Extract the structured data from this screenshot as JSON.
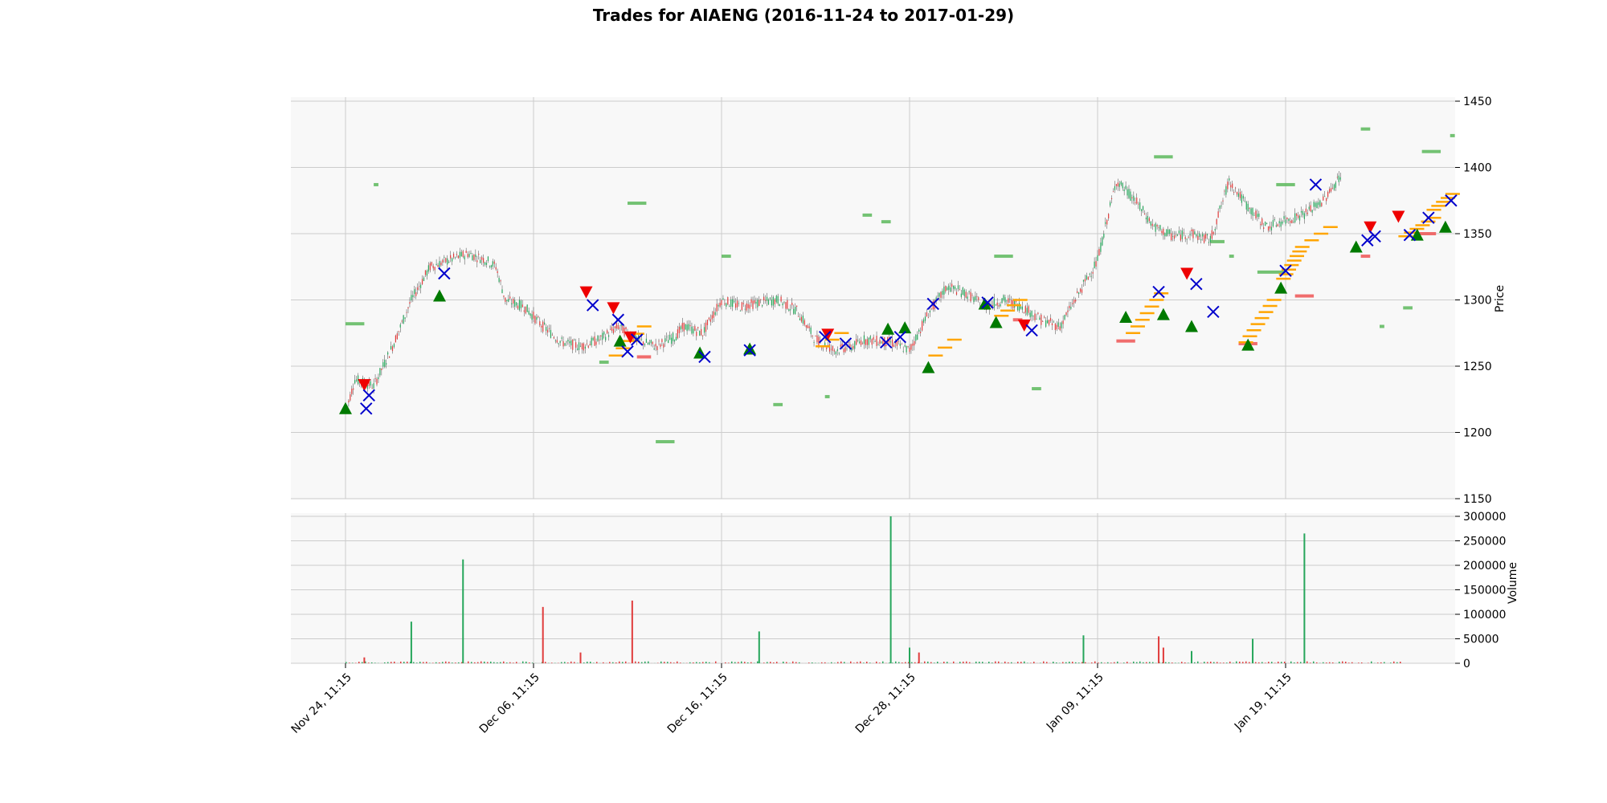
{
  "chart_data": {
    "type": "candlestick",
    "title": "Trades for AIAENG (2016-11-24 to 2017-01-29)",
    "y_label": "Price",
    "volume_label": "Volume",
    "price_ylim": [
      1150,
      1450
    ],
    "price_ticks": [
      "1150",
      "1200",
      "1250",
      "1300",
      "1350",
      "1400",
      "1450"
    ],
    "volume_ylim": [
      0,
      300000
    ],
    "volume_ticks": [
      "0",
      "50000",
      "100000",
      "150000",
      "200000",
      "250000",
      "300000"
    ],
    "x_ticks": [
      "Nov 24, 11:15",
      "Dec 06, 11:15",
      "Dec 16, 11:15",
      "Dec 28, 11:15",
      "Jan 09, 11:15",
      "Jan 19, 11:15"
    ],
    "grid": true,
    "colors": {
      "up": "#26a65b",
      "down": "#e03c3c",
      "buy_marker": "#007a00",
      "sell_marker": "#ee0000",
      "exit_marker": "#0000cc",
      "entry_level": "#ffa500",
      "profit_zone": "#5cb85c",
      "loss_zone": "#ee5555",
      "panel_bg": "#f8f8f8",
      "grid": "#cccccc"
    },
    "price_path": [
      [
        0.0,
        1215
      ],
      [
        0.01,
        1240
      ],
      [
        0.03,
        1235
      ],
      [
        0.05,
        1265
      ],
      [
        0.07,
        1300
      ],
      [
        0.09,
        1325
      ],
      [
        0.11,
        1330
      ],
      [
        0.13,
        1335
      ],
      [
        0.15,
        1330
      ],
      [
        0.16,
        1325
      ],
      [
        0.17,
        1300
      ],
      [
        0.19,
        1295
      ],
      [
        0.21,
        1280
      ],
      [
        0.23,
        1268
      ],
      [
        0.25,
        1265
      ],
      [
        0.27,
        1270
      ],
      [
        0.29,
        1280
      ],
      [
        0.31,
        1270
      ],
      [
        0.33,
        1265
      ],
      [
        0.35,
        1272
      ],
      [
        0.36,
        1280
      ],
      [
        0.38,
        1275
      ],
      [
        0.4,
        1300
      ],
      [
        0.42,
        1295
      ],
      [
        0.44,
        1298
      ],
      [
        0.46,
        1300
      ],
      [
        0.48,
        1292
      ],
      [
        0.5,
        1270
      ],
      [
        0.52,
        1262
      ],
      [
        0.54,
        1265
      ],
      [
        0.55,
        1270
      ],
      [
        0.58,
        1268
      ],
      [
        0.6,
        1262
      ],
      [
        0.62,
        1290
      ],
      [
        0.64,
        1310
      ],
      [
        0.66,
        1305
      ],
      [
        0.68,
        1295
      ],
      [
        0.7,
        1300
      ],
      [
        0.72,
        1295
      ],
      [
        0.74,
        1285
      ],
      [
        0.76,
        1280
      ],
      [
        0.78,
        1305
      ],
      [
        0.8,
        1330
      ],
      [
        0.82,
        1390
      ],
      [
        0.84,
        1375
      ],
      [
        0.86,
        1355
      ],
      [
        0.88,
        1348
      ],
      [
        0.9,
        1350
      ],
      [
        0.92,
        1345
      ],
      [
        0.94,
        1390
      ],
      [
        0.96,
        1370
      ],
      [
        0.98,
        1355
      ],
      [
        1.0,
        1360
      ],
      [
        1.02,
        1365
      ],
      [
        1.04,
        1375
      ],
      [
        1.06,
        1395
      ]
    ],
    "volume_spikes": [
      [
        0.02,
        12000,
        "down"
      ],
      [
        0.07,
        85000,
        "up"
      ],
      [
        0.125,
        212000,
        "up"
      ],
      [
        0.21,
        115000,
        "down"
      ],
      [
        0.25,
        22000,
        "down"
      ],
      [
        0.305,
        128000,
        "down"
      ],
      [
        0.44,
        65000,
        "up"
      ],
      [
        0.58,
        300000,
        "up"
      ],
      [
        0.6,
        32000,
        "up"
      ],
      [
        0.61,
        22000,
        "down"
      ],
      [
        0.785,
        57000,
        "up"
      ],
      [
        0.865,
        55000,
        "down"
      ],
      [
        0.87,
        32000,
        "down"
      ],
      [
        0.9,
        25000,
        "up"
      ],
      [
        0.965,
        50000,
        "up"
      ],
      [
        1.02,
        265000,
        "up"
      ]
    ],
    "buy_markers": [
      [
        0.0,
        1218
      ],
      [
        0.1,
        1303
      ],
      [
        0.292,
        1269
      ],
      [
        0.377,
        1260
      ],
      [
        0.43,
        1263
      ],
      [
        0.577,
        1278
      ],
      [
        0.595,
        1279
      ],
      [
        0.62,
        1249
      ],
      [
        0.68,
        1297
      ],
      [
        0.692,
        1283
      ],
      [
        0.83,
        1287
      ],
      [
        0.87,
        1289
      ],
      [
        0.9,
        1280
      ],
      [
        0.96,
        1266
      ],
      [
        0.995,
        1309
      ],
      [
        1.075,
        1340
      ],
      [
        1.14,
        1349
      ],
      [
        1.17,
        1355
      ]
    ],
    "sell_markers": [
      [
        0.02,
        1236
      ],
      [
        0.256,
        1306
      ],
      [
        0.285,
        1294
      ],
      [
        0.303,
        1272
      ],
      [
        0.513,
        1274
      ],
      [
        0.722,
        1281
      ],
      [
        0.895,
        1320
      ],
      [
        1.09,
        1355
      ],
      [
        1.12,
        1363
      ]
    ],
    "exit_markers": [
      [
        0.022,
        1218
      ],
      [
        0.025,
        1228
      ],
      [
        0.105,
        1320
      ],
      [
        0.263,
        1296
      ],
      [
        0.29,
        1285
      ],
      [
        0.3,
        1261
      ],
      [
        0.31,
        1270
      ],
      [
        0.382,
        1257
      ],
      [
        0.43,
        1262
      ],
      [
        0.51,
        1272
      ],
      [
        0.532,
        1267
      ],
      [
        0.575,
        1268
      ],
      [
        0.59,
        1272
      ],
      [
        0.625,
        1297
      ],
      [
        0.683,
        1298
      ],
      [
        0.73,
        1277
      ],
      [
        0.865,
        1306
      ],
      [
        0.905,
        1312
      ],
      [
        0.923,
        1291
      ],
      [
        1.0,
        1322
      ],
      [
        1.032,
        1387
      ],
      [
        1.087,
        1345
      ],
      [
        1.095,
        1348
      ],
      [
        1.132,
        1349
      ],
      [
        1.152,
        1362
      ],
      [
        1.176,
        1375
      ]
    ],
    "profit_zones": [
      [
        0.0,
        0.02,
        1282
      ],
      [
        0.03,
        0.035,
        1387
      ],
      [
        0.27,
        0.28,
        1253
      ],
      [
        0.3,
        0.32,
        1373
      ],
      [
        0.33,
        0.35,
        1193
      ],
      [
        0.4,
        0.41,
        1333
      ],
      [
        0.55,
        0.56,
        1364
      ],
      [
        0.57,
        0.58,
        1359
      ],
      [
        0.69,
        0.71,
        1333
      ],
      [
        0.73,
        0.74,
        1233
      ],
      [
        0.86,
        0.88,
        1408
      ],
      [
        0.92,
        0.935,
        1344
      ],
      [
        0.94,
        0.945,
        1333
      ],
      [
        0.97,
        1.0,
        1321
      ],
      [
        0.99,
        1.01,
        1387
      ],
      [
        1.08,
        1.09,
        1429
      ],
      [
        1.1,
        1.105,
        1280
      ],
      [
        1.125,
        1.135,
        1294
      ],
      [
        1.145,
        1.165,
        1412
      ],
      [
        1.175,
        1.18,
        1424
      ],
      [
        0.455,
        0.465,
        1221
      ],
      [
        0.51,
        0.515,
        1227
      ]
    ],
    "loss_zones": [
      [
        0.82,
        0.84,
        1269
      ],
      [
        0.95,
        0.97,
        1267
      ],
      [
        1.01,
        1.03,
        1303
      ],
      [
        1.08,
        1.09,
        1333
      ],
      [
        1.142,
        1.16,
        1350
      ],
      [
        0.71,
        0.72,
        1285
      ],
      [
        0.31,
        0.325,
        1257
      ]
    ],
    "entry_ladders": [
      [
        0.28,
        0.31,
        1258,
        1280,
        5
      ],
      [
        0.5,
        0.52,
        1265,
        1275,
        3
      ],
      [
        0.62,
        0.64,
        1258,
        1270,
        3
      ],
      [
        0.69,
        0.71,
        1288,
        1300,
        4
      ],
      [
        0.83,
        0.86,
        1275,
        1305,
        7
      ],
      [
        0.95,
        0.98,
        1268,
        1300,
        8
      ],
      [
        0.99,
        1.01,
        1316,
        1340,
        8
      ],
      [
        1.02,
        1.04,
        1345,
        1355,
        3
      ],
      [
        1.12,
        1.15,
        1348,
        1362,
        6
      ],
      [
        1.15,
        1.17,
        1368,
        1380,
        5
      ]
    ]
  }
}
